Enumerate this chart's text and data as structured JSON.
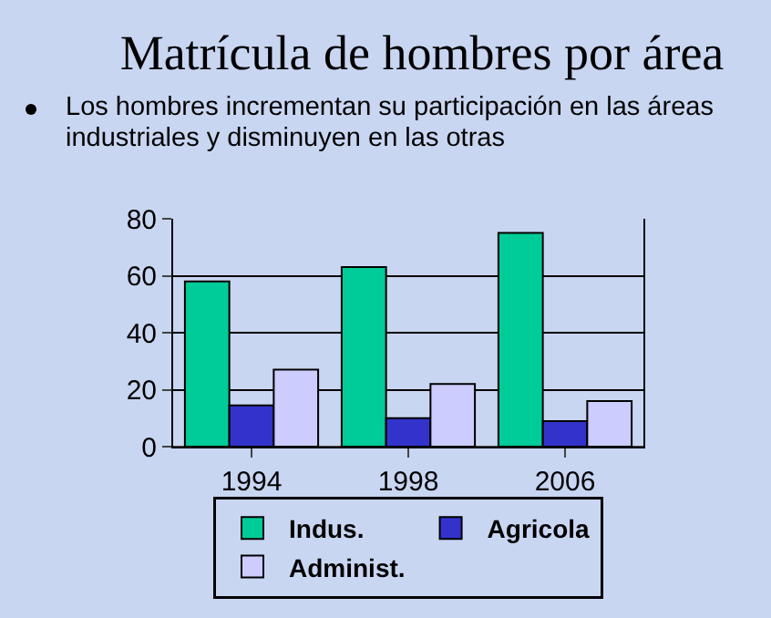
{
  "chart_data": {
    "type": "bar",
    "title": "Matrícula de hombres por área",
    "subtitle": "Los hombres incrementan su participación en las áreas industriales y disminuyen en las otras",
    "categories": [
      "1994",
      "1998",
      "2006"
    ],
    "series": [
      {
        "name": "Indus.",
        "color": "#00cc99",
        "values": [
          58,
          63,
          75
        ]
      },
      {
        "name": "Agricola",
        "color": "#3333cc",
        "values": [
          14.5,
          10,
          9
        ]
      },
      {
        "name": "Administ.",
        "color": "#ccccff",
        "values": [
          27,
          22,
          16
        ]
      }
    ],
    "ylim": [
      0,
      80
    ],
    "yticks": [
      0,
      20,
      40,
      60,
      80
    ],
    "grid": "y",
    "legend": "bottom"
  }
}
